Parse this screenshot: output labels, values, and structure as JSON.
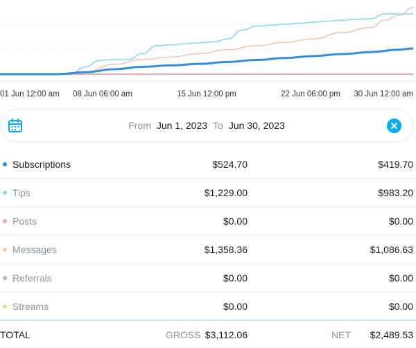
{
  "chart_data": {
    "type": "line",
    "x_tick_labels": [
      "01 Jun 12:00 am",
      "08 Jun 06:00 am",
      "15 Jun 12:00 pm",
      "22 Jun 06:00 pm",
      "30 Jun 12:00 am"
    ],
    "x_range": [
      "Jun 1, 2023",
      "Jun 30, 2023"
    ],
    "grid": true,
    "series": [
      {
        "name": "Tips",
        "color": "#8ad9e8",
        "x": [
          1,
          3,
          5,
          6,
          7,
          8,
          9,
          10,
          11,
          12,
          13,
          14,
          15,
          16,
          17,
          18,
          19,
          20,
          21,
          22,
          23,
          24,
          25,
          26,
          27,
          28,
          29,
          30
        ],
        "values": [
          0,
          0,
          0,
          20,
          150,
          280,
          300,
          300,
          420,
          580,
          600,
          620,
          640,
          660,
          720,
          900,
          980,
          1000,
          1020,
          1040,
          1060,
          1080,
          1100,
          1120,
          1130,
          1229,
          1229,
          1229
        ]
      },
      {
        "name": "Messages",
        "color": "#f5c4b4",
        "x": [
          1,
          5,
          7,
          9,
          11,
          13,
          15,
          17,
          19,
          21,
          23,
          25,
          27,
          28,
          29,
          30
        ],
        "values": [
          0,
          0,
          50,
          200,
          300,
          350,
          420,
          500,
          580,
          650,
          720,
          850,
          950,
          1100,
          1200,
          1358.36
        ]
      },
      {
        "name": "Subscriptions",
        "color": "#2f8fde",
        "x": [
          1,
          5,
          7,
          9,
          11,
          13,
          15,
          17,
          19,
          21,
          23,
          25,
          27,
          29,
          30
        ],
        "values": [
          0,
          0,
          40,
          100,
          150,
          180,
          210,
          250,
          290,
          330,
          370,
          410,
          450,
          500,
          524.7
        ]
      },
      {
        "name": "Posts",
        "color": "#f0a0b0",
        "x": [
          1,
          30
        ],
        "values": [
          0,
          0
        ]
      },
      {
        "name": "Referrals",
        "color": "#b8a8e0",
        "x": [
          1,
          30
        ],
        "values": [
          0,
          0
        ]
      },
      {
        "name": "Streams",
        "color": "#f5d48a",
        "x": [
          1,
          30
        ],
        "values": [
          0,
          0
        ]
      }
    ],
    "ylim": [
      0,
      1400
    ]
  },
  "filter": {
    "from_label": "From",
    "from_value": "Jun 1, 2023",
    "to_label": "To",
    "to_value": "Jun 30, 2023"
  },
  "rows": [
    {
      "name": "Subscriptions",
      "gross": "$524.70",
      "net": "$419.70",
      "color": "#2f8fde",
      "muted": false
    },
    {
      "name": "Tips",
      "gross": "$1,229.00",
      "net": "$983.20",
      "color": "#8ad9e8",
      "muted": true
    },
    {
      "name": "Posts",
      "gross": "$0.00",
      "net": "$0.00",
      "color": "#f0a0b0",
      "muted": true
    },
    {
      "name": "Messages",
      "gross": "$1,358.36",
      "net": "$1,086.63",
      "color": "#f5c4b4",
      "muted": true
    },
    {
      "name": "Referrals",
      "gross": "$0.00",
      "net": "$0.00",
      "color": "#b8a8e0",
      "muted": true
    },
    {
      "name": "Streams",
      "gross": "$0.00",
      "net": "$0.00",
      "color": "#f5d48a",
      "muted": true
    }
  ],
  "total": {
    "label": "TOTAL",
    "gross_label": "GROSS",
    "gross_value": "$3,112.06",
    "net_label": "NET",
    "net_value": "$2,489.53"
  }
}
